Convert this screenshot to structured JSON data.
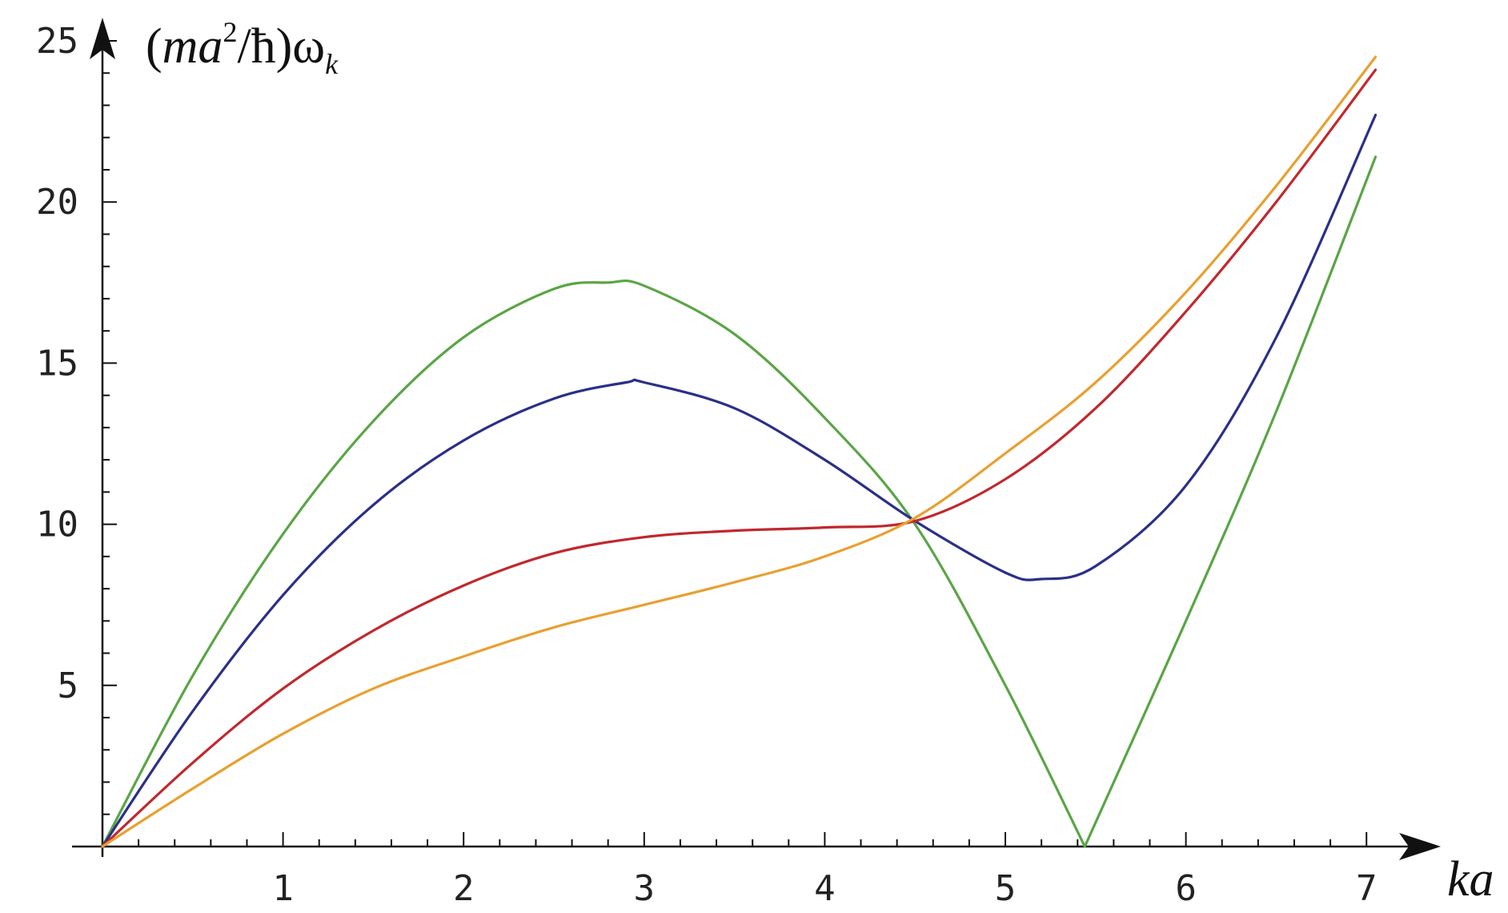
{
  "chart_data": {
    "type": "line",
    "title": "",
    "ylabel": {
      "prefix": "(",
      "m": "ma",
      "sup": "2",
      "slash": "/ħ)ω",
      "sub": "k"
    },
    "xlabel": "ka",
    "xlim": [
      0,
      7.1
    ],
    "ylim": [
      0,
      25
    ],
    "x_ticks": [
      1,
      2,
      3,
      4,
      5,
      6,
      7
    ],
    "x_tick_labels": [
      "1",
      "2",
      "3",
      "4",
      "5",
      "6",
      "7"
    ],
    "y_ticks": [
      5,
      10,
      15,
      20,
      25
    ],
    "y_tick_labels": [
      "5",
      "10",
      "15",
      "20",
      "25"
    ],
    "grid": false,
    "legend": "none",
    "series": [
      {
        "color": "#5aa546",
        "x": [
          0,
          0.5,
          1.0,
          1.5,
          2.0,
          2.5,
          2.8,
          3.0,
          3.5,
          4.0,
          4.5,
          5.0,
          5.44,
          6.0,
          6.5,
          7.05
        ],
        "y": [
          0,
          5.3,
          9.7,
          13.2,
          15.8,
          17.3,
          17.5,
          17.4,
          15.9,
          13.3,
          10.0,
          5.0,
          0.0,
          7.0,
          13.5,
          21.4
        ]
      },
      {
        "color": "#2b2f87",
        "x": [
          0,
          0.5,
          1.0,
          1.5,
          2.0,
          2.5,
          2.9,
          3.0,
          3.5,
          4.0,
          4.5,
          5.0,
          5.2,
          5.5,
          6.0,
          6.5,
          7.05
        ],
        "y": [
          0,
          4.2,
          7.8,
          10.6,
          12.6,
          13.9,
          14.4,
          14.4,
          13.6,
          12.0,
          10.1,
          8.5,
          8.3,
          8.7,
          11.2,
          15.8,
          22.7
        ]
      },
      {
        "color": "#c0282d",
        "x": [
          0,
          0.5,
          1.0,
          1.5,
          2.0,
          2.5,
          3.0,
          3.5,
          4.0,
          4.5,
          5.0,
          5.5,
          6.0,
          6.5,
          7.05
        ],
        "y": [
          0,
          2.6,
          4.9,
          6.7,
          8.1,
          9.1,
          9.6,
          9.8,
          9.9,
          10.1,
          11.4,
          13.6,
          16.6,
          20.0,
          24.1
        ]
      },
      {
        "color": "#e8a030",
        "x": [
          0,
          0.5,
          1.0,
          1.5,
          2.0,
          2.5,
          3.0,
          3.5,
          4.0,
          4.5,
          5.0,
          5.5,
          6.0,
          6.5,
          7.05
        ],
        "y": [
          0,
          1.8,
          3.5,
          4.9,
          5.9,
          6.8,
          7.5,
          8.2,
          9.0,
          10.2,
          12.2,
          14.4,
          17.2,
          20.5,
          24.5
        ]
      }
    ]
  }
}
